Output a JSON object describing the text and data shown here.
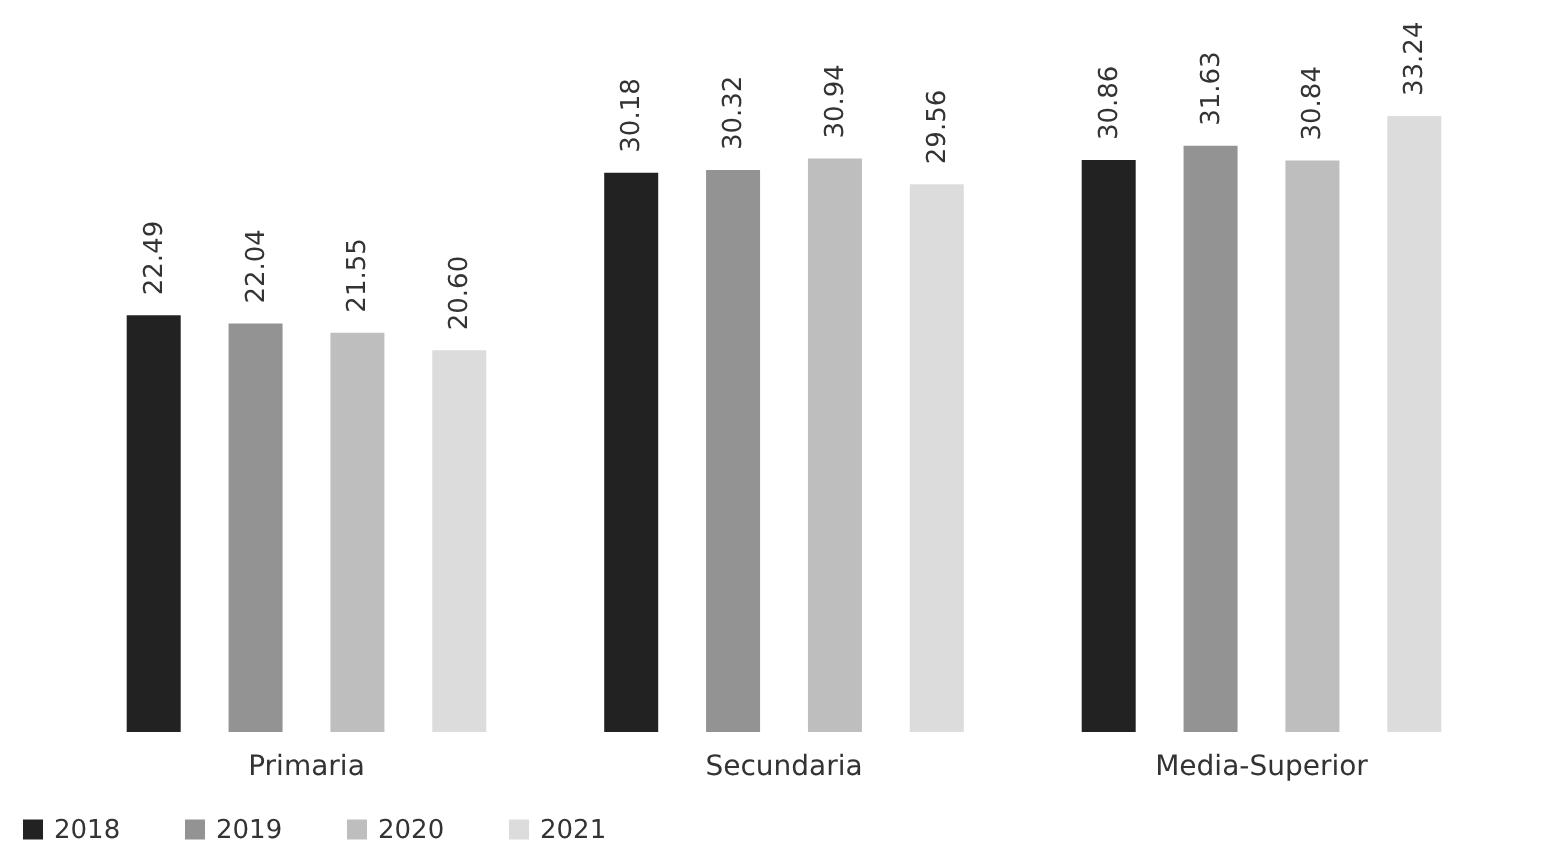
{
  "chart_data": {
    "type": "bar",
    "categories": [
      "Primaria",
      "Secundaria",
      "Media-Superior"
    ],
    "series": [
      {
        "name": "2018",
        "color": "#222222",
        "values": [
          22.49,
          30.18,
          30.86
        ],
        "value_labels": [
          "22.49",
          "30.18",
          "30.86"
        ]
      },
      {
        "name": "2019",
        "color": "#939393",
        "values": [
          22.04,
          30.32,
          31.63
        ],
        "value_labels": [
          "22.04",
          "30.32",
          "31.63"
        ]
      },
      {
        "name": "2020",
        "color": "#bebebe",
        "values": [
          21.55,
          30.94,
          30.84
        ],
        "value_labels": [
          "21.55",
          "30.94",
          "30.84"
        ]
      },
      {
        "name": "2021",
        "color": "#dcdcdc",
        "values": [
          20.6,
          29.56,
          33.24
        ],
        "value_labels": [
          "20.60",
          "29.56",
          "33.24"
        ]
      }
    ],
    "legend": "bottom"
  }
}
